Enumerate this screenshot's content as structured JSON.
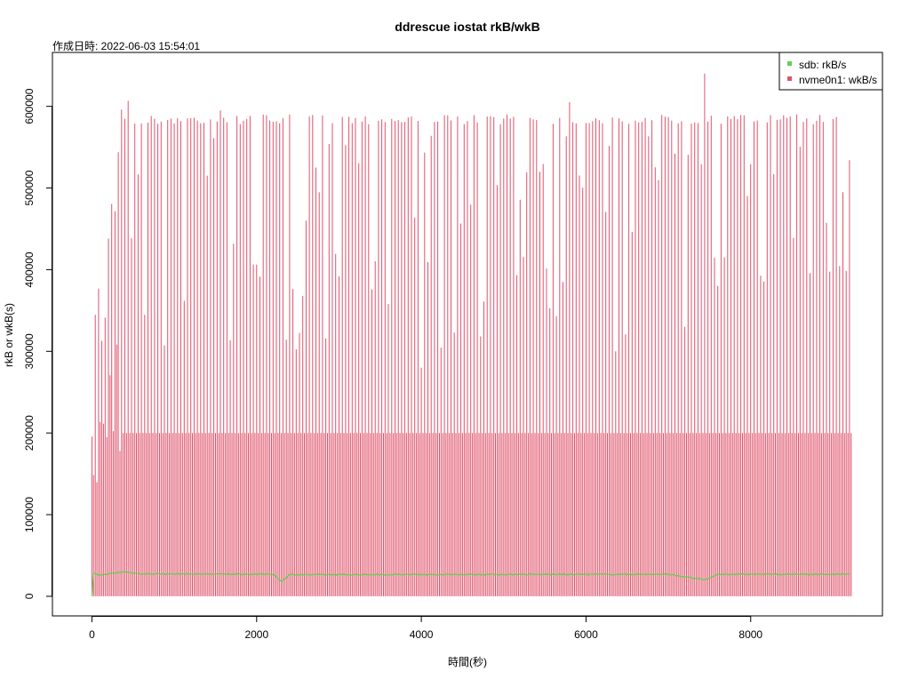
{
  "chart_data": {
    "type": "line",
    "title": "ddrescue iostat rkB/wkB",
    "subtitle": "作成日時: 2022-06-03 15:54:01",
    "xlabel": "時間(秒)",
    "ylabel": "rkB or wkB(s)",
    "xlim": [
      -480,
      9600
    ],
    "ylim": [
      -24000,
      666000
    ],
    "xticks": [
      0,
      2000,
      4000,
      6000,
      8000
    ],
    "yticks": [
      0,
      100000,
      200000,
      300000,
      400000,
      500000,
      600000
    ],
    "x_tick_labels": [
      "0",
      "2000",
      "4000",
      "6000",
      "8000"
    ],
    "y_tick_labels": [
      "0",
      "100000",
      "200000",
      "300000",
      "400000",
      "500000",
      "600000"
    ],
    "legend_position": "top-right",
    "series": [
      {
        "name": "sdb: rkB/s",
        "color": "#61d04f",
        "x_range": [
          0,
          9200
        ],
        "baseline": 28000,
        "anchors": [
          [
            0,
            0
          ],
          [
            20,
            28000
          ],
          [
            100,
            26000
          ],
          [
            380,
            30000
          ],
          [
            600,
            27500
          ],
          [
            2200,
            27000
          ],
          [
            2300,
            18000
          ],
          [
            2400,
            26500
          ],
          [
            7000,
            27000
          ],
          [
            7450,
            20000
          ],
          [
            7600,
            27000
          ],
          [
            9200,
            27000
          ]
        ]
      },
      {
        "name": "nvme0n1: wkB/s",
        "color": "#df536b",
        "x_range": [
          0,
          9200
        ],
        "plateau": 200000,
        "peak_typical": 590000,
        "peak_max": 640000,
        "spike_interval_s": 40,
        "ramp_envelope": [
          [
            0,
            230000
          ],
          [
            50,
            420000
          ],
          [
            100,
            360000
          ],
          [
            150,
            320000
          ],
          [
            200,
            450000
          ],
          [
            300,
            530000
          ],
          [
            380,
            640000
          ],
          [
            450,
            590000
          ]
        ],
        "notable_peaks": [
          [
            380,
            640000
          ],
          [
            7450,
            640000
          ],
          [
            1550,
            595000
          ],
          [
            5800,
            605000
          ]
        ],
        "dips": [
          [
            3100,
            295000
          ],
          [
            4000,
            280000
          ],
          [
            5900,
            290000
          ],
          [
            7200,
            330000
          ],
          [
            7600,
            380000
          ]
        ]
      }
    ]
  }
}
